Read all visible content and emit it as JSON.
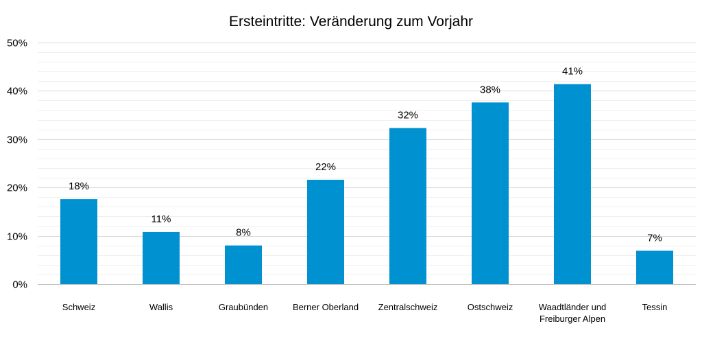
{
  "chart_data": {
    "type": "bar",
    "title": "Ersteintritte: Veränderung zum Vorjahr",
    "categories": [
      "Schweiz",
      "Wallis",
      "Graubünden",
      "Berner Oberland",
      "Zentralschweiz",
      "Ostschweiz",
      "Waadtländer und Freiburger Alpen",
      "Tessin"
    ],
    "category_lines": [
      [
        "Schweiz"
      ],
      [
        "Wallis"
      ],
      [
        "Graubünden"
      ],
      [
        "Berner Oberland"
      ],
      [
        "Zentralschweiz"
      ],
      [
        "Ostschweiz"
      ],
      [
        "Waadtländer und",
        "Freiburger Alpen"
      ],
      [
        "Tessin"
      ]
    ],
    "values": [
      17.6,
      10.8,
      8.0,
      21.6,
      32.3,
      37.6,
      41.4,
      6.9
    ],
    "data_labels": [
      "18%",
      "11%",
      "8%",
      "22%",
      "32%",
      "38%",
      "41%",
      "7%"
    ],
    "ylim": [
      0,
      50
    ],
    "yticks": [
      0,
      10,
      20,
      30,
      40,
      50
    ],
    "ytick_labels": [
      "0%",
      "10%",
      "20%",
      "30%",
      "40%",
      "50%"
    ],
    "minor_step": 2,
    "xlabel": "",
    "ylabel": "",
    "bar_color": "#0091D1",
    "legend": "none"
  }
}
